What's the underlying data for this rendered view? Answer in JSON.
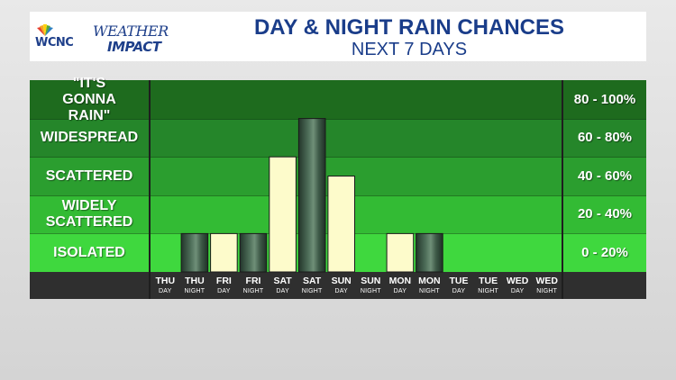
{
  "header": {
    "logo_station": "WCNC",
    "logo_weather": "WEATHER",
    "logo_impact": "IMPACT",
    "title": "DAY & NIGHT RAIN CHANCES",
    "subtitle": "NEXT 7 DAYS"
  },
  "bands": [
    {
      "label": "\"IT'S GONNA RAIN\"",
      "range": "80 - 100%",
      "color": "#1e6b1e"
    },
    {
      "label": "WIDESPREAD",
      "range": "60 - 80%",
      "color": "#25862a"
    },
    {
      "label": "SCATTERED",
      "range": "40 - 60%",
      "color": "#2b9e2f"
    },
    {
      "label": "WIDELY SCATTERED",
      "range": "20 - 40%",
      "color": "#33bb34"
    },
    {
      "label": "ISOLATED",
      "range": "0 - 20%",
      "color": "#3fd83e"
    }
  ],
  "colors": {
    "day_bar": "#fdfbcb",
    "night_bar": "#3e5a48",
    "title": "#1a3d8a"
  },
  "chart_data": {
    "type": "bar",
    "title": "DAY & NIGHT RAIN CHANCES",
    "subtitle": "NEXT 7 DAYS",
    "ylim": [
      0,
      100
    ],
    "y_categories": [
      "ISOLATED",
      "WIDELY SCATTERED",
      "SCATTERED",
      "WIDESPREAD",
      "\"IT'S GONNA RAIN\""
    ],
    "categories": [
      {
        "day": "THU",
        "period": "DAY"
      },
      {
        "day": "THU",
        "period": "NIGHT"
      },
      {
        "day": "FRI",
        "period": "DAY"
      },
      {
        "day": "FRI",
        "period": "NIGHT"
      },
      {
        "day": "SAT",
        "period": "DAY"
      },
      {
        "day": "SAT",
        "period": "NIGHT"
      },
      {
        "day": "SUN",
        "period": "DAY"
      },
      {
        "day": "SUN",
        "period": "NIGHT"
      },
      {
        "day": "MON",
        "period": "DAY"
      },
      {
        "day": "MON",
        "period": "NIGHT"
      },
      {
        "day": "TUE",
        "period": "DAY"
      },
      {
        "day": "TUE",
        "period": "NIGHT"
      },
      {
        "day": "WED",
        "period": "DAY"
      },
      {
        "day": "WED",
        "period": "NIGHT"
      }
    ],
    "values": [
      0,
      20,
      20,
      20,
      60,
      80,
      50,
      0,
      20,
      20,
      0,
      0,
      0,
      0
    ]
  }
}
